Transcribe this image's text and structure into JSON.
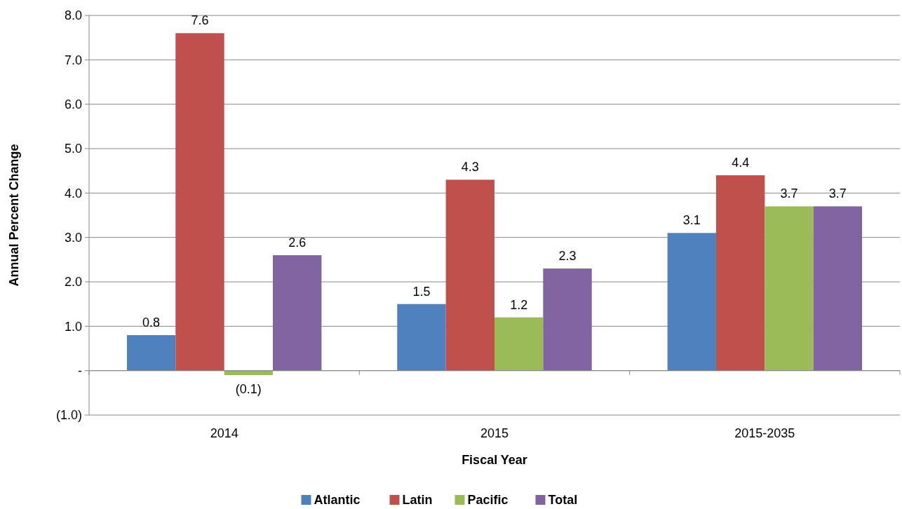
{
  "chart_data": {
    "type": "bar",
    "xlabel": "Fiscal Year",
    "ylabel": "Annual Percent Change",
    "categories": [
      "2014",
      "2015",
      "2015-2035"
    ],
    "series": [
      {
        "name": "Atlantic",
        "color": "#4f81bd",
        "values": [
          0.8,
          1.5,
          3.1
        ],
        "value_labels": [
          "0.8",
          "1.5",
          "3.1"
        ]
      },
      {
        "name": "Latin",
        "color": "#c0504d",
        "values": [
          7.6,
          4.3,
          4.4
        ],
        "value_labels": [
          "7.6",
          "4.3",
          "4.4"
        ]
      },
      {
        "name": "Pacific",
        "color": "#9bbb59",
        "values": [
          -0.1,
          1.2,
          3.7
        ],
        "value_labels": [
          "(0.1)",
          "1.2",
          "3.7"
        ]
      },
      {
        "name": "Total",
        "color": "#8064a2",
        "values": [
          2.6,
          2.3,
          3.7
        ],
        "value_labels": [
          "2.6",
          "2.3",
          "3.7"
        ]
      }
    ],
    "ylim": [
      -1,
      8
    ],
    "yticks": [
      {
        "value": -1,
        "label": "(1.0)"
      },
      {
        "value": 0,
        "label": "-"
      },
      {
        "value": 1,
        "label": "1.0"
      },
      {
        "value": 2,
        "label": "2.0"
      },
      {
        "value": 3,
        "label": "3.0"
      },
      {
        "value": 4,
        "label": "4.0"
      },
      {
        "value": 5,
        "label": "5.0"
      },
      {
        "value": 6,
        "label": "6.0"
      },
      {
        "value": 7,
        "label": "7.0"
      },
      {
        "value": 8,
        "label": "8.0"
      }
    ],
    "grid": "y",
    "legend": "bottom"
  }
}
